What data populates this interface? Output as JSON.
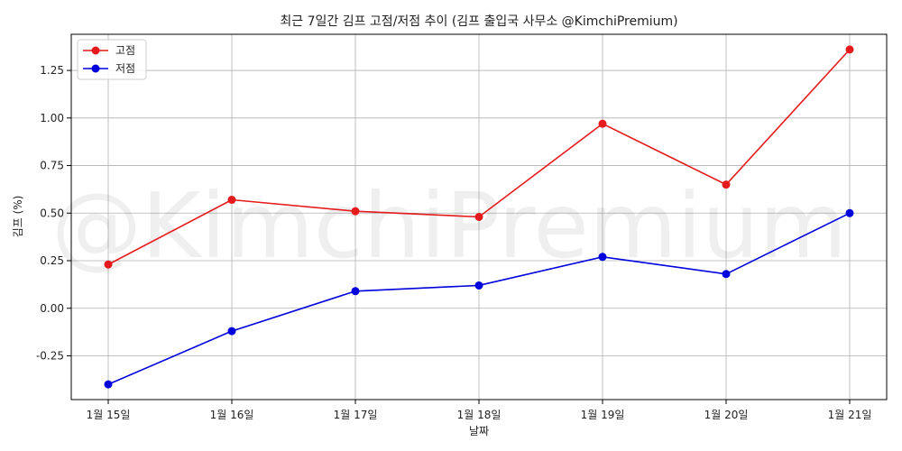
{
  "chart_data": {
    "type": "line",
    "title": "최근 7일간 김프 고점/저점 추이 (김프 출입국 사무소 @KimchiPremium)",
    "xlabel": "날짜",
    "ylabel": "김프 (%)",
    "categories": [
      "1월 15일",
      "1월 16일",
      "1월 17일",
      "1월 18일",
      "1월 19일",
      "1월 20일",
      "1월 21일"
    ],
    "series": [
      {
        "name": "고점",
        "color": "#e41a1c",
        "values": [
          0.23,
          0.57,
          0.51,
          0.48,
          0.97,
          0.65,
          1.36
        ]
      },
      {
        "name": "저점",
        "color": "#0000dd",
        "values": [
          -0.4,
          -0.12,
          0.09,
          0.12,
          0.27,
          0.18,
          0.5
        ]
      }
    ],
    "ylim": [
      -0.48,
      1.44
    ],
    "yticks": [
      -0.25,
      0.0,
      0.25,
      0.5,
      0.75,
      1.0,
      1.25
    ],
    "ytick_labels": [
      "-0.25",
      "0.00",
      "0.25",
      "0.50",
      "0.75",
      "1.00",
      "1.25"
    ],
    "grid": true,
    "legend_position": "top-left",
    "watermark": "@KimchiPremium"
  }
}
